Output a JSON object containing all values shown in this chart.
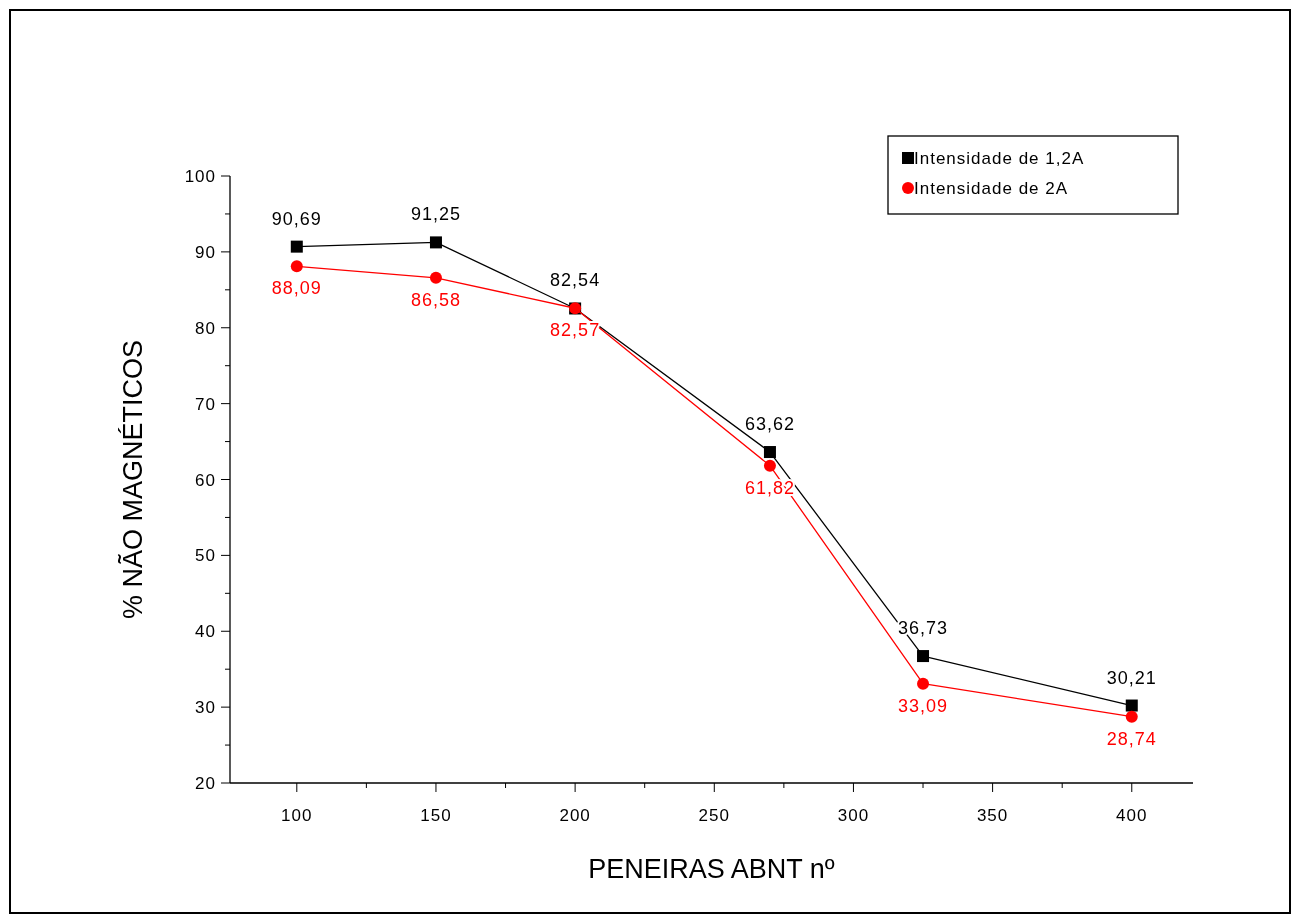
{
  "chart_data": {
    "type": "line",
    "xlabel": "PENEIRAS ABNT nº",
    "ylabel": "% NÃO MAGNÉTICOS",
    "x": [
      100,
      150,
      200,
      270,
      325,
      400
    ],
    "xlim": [
      76,
      422
    ],
    "xticks": [
      100,
      {
        "value": 125,
        "label": null
      },
      150,
      {
        "value": 175,
        "label": null
      },
      200,
      {
        "value": 225,
        "label": null
      },
      250,
      {
        "value": 275,
        "label": null
      },
      300,
      {
        "value": 325,
        "label": null
      },
      350,
      {
        "value": 375,
        "label": null
      },
      400
    ],
    "ylim": [
      20,
      100
    ],
    "yticks": [
      20,
      {
        "value": 25,
        "label": null
      },
      30,
      {
        "value": 35,
        "label": null
      },
      40,
      {
        "value": 45,
        "label": null
      },
      50,
      {
        "value": 55,
        "label": null
      },
      60,
      {
        "value": 65,
        "label": null
      },
      70,
      {
        "value": 75,
        "label": null
      },
      80,
      {
        "value": 85,
        "label": null
      },
      90,
      {
        "value": 95,
        "label": null
      },
      100
    ],
    "grid": false,
    "legend": "top right",
    "series": [
      {
        "name": "Intensidade de 1,2A",
        "color": "#000000",
        "marker": "square",
        "values": [
          90.69,
          91.25,
          82.54,
          63.62,
          36.73,
          30.21
        ],
        "value_labels": [
          "90,69",
          "91,25",
          "82,54",
          "63,62",
          "36,73",
          "30,21"
        ]
      },
      {
        "name": "Intensidade de 2A",
        "color": "#ff0000",
        "marker": "circle",
        "values": [
          88.09,
          86.58,
          82.57,
          61.82,
          33.09,
          28.74
        ],
        "value_labels": [
          "88,09",
          "86,58",
          "82,57",
          "61,82",
          "33,09",
          "28,74"
        ]
      }
    ]
  }
}
